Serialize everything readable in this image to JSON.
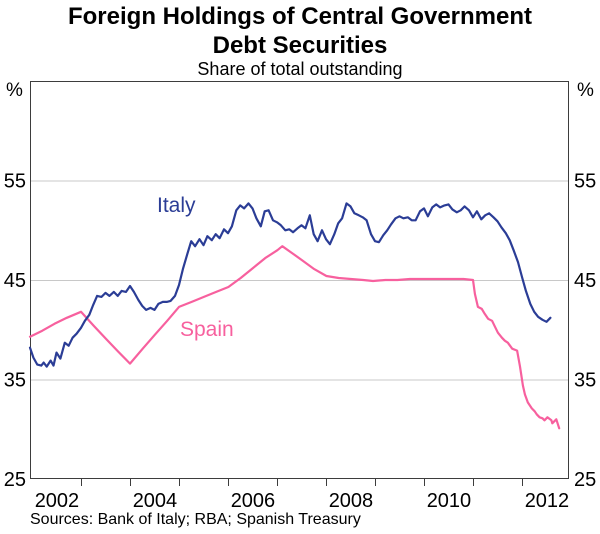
{
  "header": {
    "title_line1": "Foreign Holdings of Central Government",
    "title_line2": "Debt Securities",
    "subtitle": "Share of total outstanding"
  },
  "axes": {
    "unit_left": "%",
    "unit_right": "%"
  },
  "footer": {
    "sources": "Sources: Bank of Italy; RBA; Spanish Treasury"
  },
  "chart_data": {
    "type": "line",
    "title": "Foreign Holdings of Central Government Debt Securities",
    "subtitle": "Share of total outstanding",
    "ylabel": "%",
    "grid": "horizontal",
    "legend_position": "inline-labels",
    "ylim": [
      25,
      65
    ],
    "xlim": [
      2001.95,
      2012.95
    ],
    "y_gridlines": [
      35,
      45,
      55
    ],
    "y_tick_labels": [
      55,
      45,
      35,
      25
    ],
    "x_tick_years": [
      2003,
      2004,
      2005,
      2006,
      2007,
      2008,
      2009,
      2010,
      2011,
      2012
    ],
    "x_year_labels": [
      2002,
      2004,
      2006,
      2008,
      2010,
      2012
    ],
    "series": [
      {
        "name": "Italy",
        "color": "#2B3D96",
        "points": [
          [
            2001.95,
            38.2
          ],
          [
            2002.02,
            37.2
          ],
          [
            2002.1,
            36.5
          ],
          [
            2002.18,
            36.4
          ],
          [
            2002.23,
            36.7
          ],
          [
            2002.29,
            36.3
          ],
          [
            2002.37,
            36.9
          ],
          [
            2002.43,
            36.4
          ],
          [
            2002.49,
            37.7
          ],
          [
            2002.57,
            37.1
          ],
          [
            2002.66,
            38.7
          ],
          [
            2002.74,
            38.4
          ],
          [
            2002.82,
            39.2
          ],
          [
            2002.9,
            39.6
          ],
          [
            2002.99,
            40.2
          ],
          [
            2003.07,
            40.9
          ],
          [
            2003.16,
            41.5
          ],
          [
            2003.24,
            42.5
          ],
          [
            2003.32,
            43.4
          ],
          [
            2003.41,
            43.3
          ],
          [
            2003.49,
            43.7
          ],
          [
            2003.57,
            43.4
          ],
          [
            2003.66,
            43.8
          ],
          [
            2003.74,
            43.4
          ],
          [
            2003.82,
            43.9
          ],
          [
            2003.91,
            43.8
          ],
          [
            2003.99,
            44.4
          ],
          [
            2004.07,
            43.8
          ],
          [
            2004.16,
            43.0
          ],
          [
            2004.24,
            42.4
          ],
          [
            2004.32,
            42.0
          ],
          [
            2004.41,
            42.2
          ],
          [
            2004.49,
            42.0
          ],
          [
            2004.57,
            42.6
          ],
          [
            2004.66,
            42.8
          ],
          [
            2004.74,
            42.8
          ],
          [
            2004.82,
            42.9
          ],
          [
            2004.91,
            43.4
          ],
          [
            2004.99,
            44.5
          ],
          [
            2005.07,
            46.1
          ],
          [
            2005.16,
            47.6
          ],
          [
            2005.24,
            48.9
          ],
          [
            2005.32,
            48.4
          ],
          [
            2005.41,
            49.1
          ],
          [
            2005.49,
            48.5
          ],
          [
            2005.57,
            49.4
          ],
          [
            2005.66,
            49.0
          ],
          [
            2005.74,
            49.6
          ],
          [
            2005.82,
            49.2
          ],
          [
            2005.91,
            50.1
          ],
          [
            2005.99,
            49.7
          ],
          [
            2006.07,
            50.4
          ],
          [
            2006.16,
            52.0
          ],
          [
            2006.24,
            52.5
          ],
          [
            2006.32,
            52.2
          ],
          [
            2006.41,
            52.7
          ],
          [
            2006.49,
            52.2
          ],
          [
            2006.57,
            51.2
          ],
          [
            2006.66,
            50.4
          ],
          [
            2006.74,
            51.9
          ],
          [
            2006.82,
            52.0
          ],
          [
            2006.91,
            51.0
          ],
          [
            2006.99,
            50.8
          ],
          [
            2007.07,
            50.5
          ],
          [
            2007.16,
            50.0
          ],
          [
            2007.24,
            50.1
          ],
          [
            2007.32,
            49.8
          ],
          [
            2007.41,
            50.2
          ],
          [
            2007.49,
            50.5
          ],
          [
            2007.57,
            50.2
          ],
          [
            2007.66,
            51.5
          ],
          [
            2007.74,
            49.6
          ],
          [
            2007.82,
            48.9
          ],
          [
            2007.91,
            50.0
          ],
          [
            2007.99,
            49.1
          ],
          [
            2008.07,
            48.6
          ],
          [
            2008.16,
            49.6
          ],
          [
            2008.24,
            50.7
          ],
          [
            2008.32,
            51.2
          ],
          [
            2008.41,
            52.7
          ],
          [
            2008.49,
            52.4
          ],
          [
            2008.57,
            51.7
          ],
          [
            2008.66,
            51.5
          ],
          [
            2008.74,
            51.3
          ],
          [
            2008.82,
            51.0
          ],
          [
            2008.91,
            49.6
          ],
          [
            2008.99,
            48.9
          ],
          [
            2009.07,
            48.8
          ],
          [
            2009.16,
            49.5
          ],
          [
            2009.24,
            50.0
          ],
          [
            2009.32,
            50.6
          ],
          [
            2009.41,
            51.2
          ],
          [
            2009.49,
            51.4
          ],
          [
            2009.57,
            51.2
          ],
          [
            2009.66,
            51.3
          ],
          [
            2009.74,
            51.0
          ],
          [
            2009.82,
            51.0
          ],
          [
            2009.91,
            51.9
          ],
          [
            2009.99,
            52.2
          ],
          [
            2010.07,
            51.4
          ],
          [
            2010.16,
            52.3
          ],
          [
            2010.24,
            52.6
          ],
          [
            2010.32,
            52.3
          ],
          [
            2010.41,
            52.5
          ],
          [
            2010.49,
            52.6
          ],
          [
            2010.57,
            52.1
          ],
          [
            2010.66,
            51.8
          ],
          [
            2010.74,
            52.0
          ],
          [
            2010.82,
            52.4
          ],
          [
            2010.91,
            52.0
          ],
          [
            2010.99,
            51.3
          ],
          [
            2011.07,
            51.9
          ],
          [
            2011.16,
            51.1
          ],
          [
            2011.24,
            51.5
          ],
          [
            2011.32,
            51.7
          ],
          [
            2011.41,
            51.3
          ],
          [
            2011.49,
            50.9
          ],
          [
            2011.57,
            50.3
          ],
          [
            2011.66,
            49.7
          ],
          [
            2011.74,
            49.0
          ],
          [
            2011.82,
            48.0
          ],
          [
            2011.91,
            46.8
          ],
          [
            2011.99,
            45.3
          ],
          [
            2012.07,
            43.9
          ],
          [
            2012.16,
            42.6
          ],
          [
            2012.24,
            41.8
          ],
          [
            2012.32,
            41.3
          ],
          [
            2012.41,
            41.0
          ],
          [
            2012.49,
            40.8
          ],
          [
            2012.57,
            41.2
          ]
        ]
      },
      {
        "name": "Spain",
        "color": "#F7609E",
        "points": [
          [
            2001.95,
            39.3
          ],
          [
            2002.2,
            39.9
          ],
          [
            2002.45,
            40.6
          ],
          [
            2002.7,
            41.2
          ],
          [
            2002.99,
            41.8
          ],
          [
            2003.25,
            40.4
          ],
          [
            2003.5,
            39.1
          ],
          [
            2003.75,
            37.8
          ],
          [
            2003.99,
            36.6
          ],
          [
            2004.25,
            38.1
          ],
          [
            2004.5,
            39.5
          ],
          [
            2004.75,
            40.9
          ],
          [
            2004.99,
            42.3
          ],
          [
            2005.25,
            42.8
          ],
          [
            2005.5,
            43.3
          ],
          [
            2005.75,
            43.8
          ],
          [
            2006.0,
            44.3
          ],
          [
            2006.25,
            45.2
          ],
          [
            2006.5,
            46.2
          ],
          [
            2006.75,
            47.2
          ],
          [
            2007.0,
            48.0
          ],
          [
            2007.1,
            48.4
          ],
          [
            2007.3,
            47.7
          ],
          [
            2007.5,
            47.0
          ],
          [
            2007.75,
            46.1
          ],
          [
            2008.0,
            45.4
          ],
          [
            2008.25,
            45.2
          ],
          [
            2008.5,
            45.1
          ],
          [
            2008.75,
            45.0
          ],
          [
            2008.95,
            44.9
          ],
          [
            2009.2,
            45.0
          ],
          [
            2009.45,
            45.0
          ],
          [
            2009.7,
            45.1
          ],
          [
            2009.95,
            45.1
          ],
          [
            2010.2,
            45.1
          ],
          [
            2010.45,
            45.1
          ],
          [
            2010.8,
            45.1
          ],
          [
            2010.99,
            45.0
          ],
          [
            2011.03,
            43.6
          ],
          [
            2011.09,
            42.3
          ],
          [
            2011.17,
            42.1
          ],
          [
            2011.23,
            41.6
          ],
          [
            2011.3,
            41.1
          ],
          [
            2011.38,
            40.9
          ],
          [
            2011.44,
            40.3
          ],
          [
            2011.5,
            39.7
          ],
          [
            2011.58,
            39.2
          ],
          [
            2011.64,
            38.9
          ],
          [
            2011.7,
            38.7
          ],
          [
            2011.79,
            38.1
          ],
          [
            2011.89,
            37.9
          ],
          [
            2011.95,
            36.3
          ],
          [
            2012.01,
            34.4
          ],
          [
            2012.05,
            33.5
          ],
          [
            2012.11,
            32.7
          ],
          [
            2012.19,
            32.1
          ],
          [
            2012.25,
            31.8
          ],
          [
            2012.29,
            31.5
          ],
          [
            2012.35,
            31.2
          ],
          [
            2012.41,
            31.1
          ],
          [
            2012.45,
            30.9
          ],
          [
            2012.51,
            31.2
          ],
          [
            2012.59,
            30.9
          ],
          [
            2012.61,
            30.6
          ],
          [
            2012.69,
            31.0
          ],
          [
            2012.75,
            30.1
          ]
        ]
      }
    ]
  }
}
